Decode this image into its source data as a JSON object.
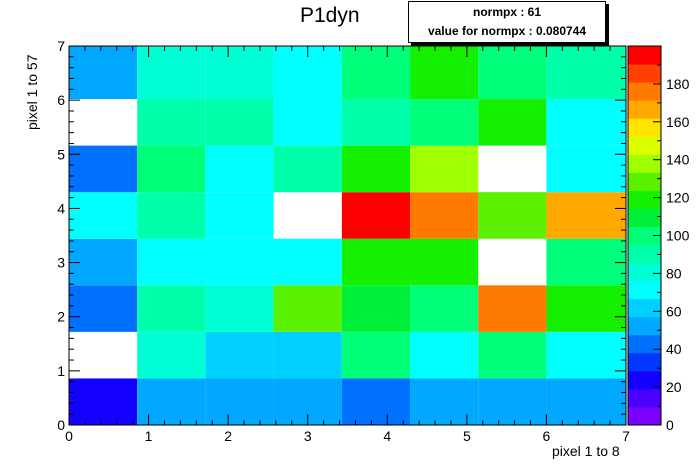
{
  "chart_data": {
    "type": "heatmap",
    "title": "P1dyn",
    "xlabel": "pixel 1 to 8",
    "ylabel": "pixel 1 to 57",
    "xlim": [
      0,
      7
    ],
    "ylim": [
      0,
      7
    ],
    "x_ticks": [
      "0",
      "1",
      "2",
      "3",
      "4",
      "5",
      "6",
      "7"
    ],
    "y_ticks": [
      "0",
      "1",
      "2",
      "3",
      "4",
      "5",
      "6",
      "7"
    ],
    "x_edges": [
      0,
      0.857,
      1.714,
      2.571,
      3.429,
      4.286,
      5.143,
      6.0,
      7.0
    ],
    "y_edges": [
      0,
      0.86,
      1.72,
      2.58,
      3.44,
      4.3,
      5.16,
      6.02,
      7.0
    ],
    "rows_bottom_to_top": [
      [
        25,
        55,
        55,
        55,
        45,
        55,
        55,
        55
      ],
      [
        null,
        80,
        65,
        65,
        100,
        75,
        100,
        75
      ],
      [
        45,
        95,
        85,
        125,
        110,
        100,
        175,
        115
      ],
      [
        55,
        70,
        70,
        70,
        115,
        115,
        null,
        100
      ],
      [
        70,
        95,
        70,
        null,
        195,
        175,
        125,
        165
      ],
      [
        45,
        100,
        70,
        90,
        115,
        135,
        null,
        70
      ],
      [
        null,
        90,
        90,
        70,
        95,
        100,
        115,
        70
      ],
      [
        55,
        85,
        85,
        70,
        100,
        120,
        100,
        90
      ]
    ],
    "z_range": [
      0,
      200
    ],
    "palette": [
      "#7a00ff",
      "#4a00ff",
      "#1400ff",
      "#0038ff",
      "#0070ff",
      "#00a8ff",
      "#00d0ff",
      "#00ffff",
      "#00ffd4",
      "#00ffaa",
      "#00ff78",
      "#00f03a",
      "#14f000",
      "#5af000",
      "#a0ff00",
      "#dcff00",
      "#ffe400",
      "#ffa800",
      "#ff7a00",
      "#ff4000",
      "#ff0000"
    ],
    "colorbar_ticks": [
      "0",
      "20",
      "40",
      "60",
      "80",
      "100",
      "120",
      "140",
      "160",
      "180"
    ],
    "legend_placement": "top-right",
    "stats": {
      "line1": "normpx : 61",
      "line2": "value for normpx : 0.080744"
    }
  }
}
